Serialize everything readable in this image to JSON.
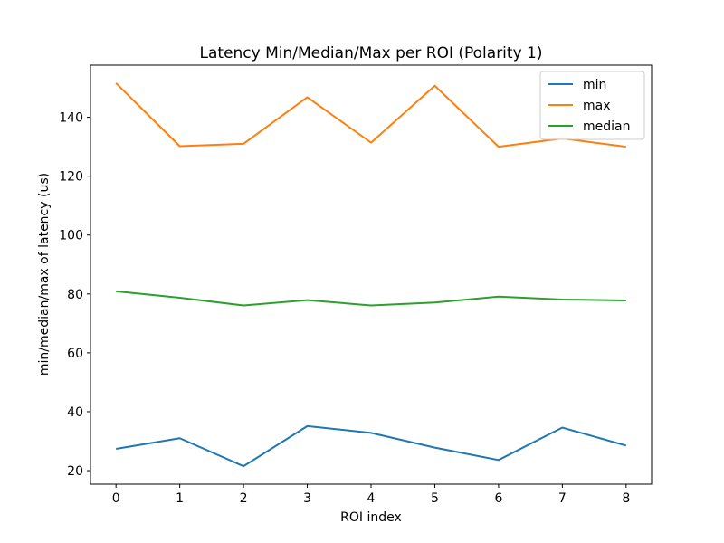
{
  "chart_data": {
    "type": "line",
    "title": "Latency Min/Median/Max per ROI (Polarity 1)",
    "xlabel": "ROI index",
    "ylabel": "min/median/max of latency (us)",
    "x": [
      0,
      1,
      2,
      3,
      4,
      5,
      6,
      7,
      8
    ],
    "xlim": [
      -0.4,
      8.4
    ],
    "ylim": [
      15.4,
      157.7
    ],
    "xticks": [
      0,
      1,
      2,
      3,
      4,
      5,
      6,
      7,
      8
    ],
    "yticks": [
      20,
      40,
      60,
      80,
      100,
      120,
      140
    ],
    "grid": false,
    "legend_position": "top-right",
    "series": [
      {
        "name": "min",
        "color": "#1f77b4",
        "values": [
          27.4,
          31.0,
          21.5,
          35.1,
          32.8,
          27.8,
          23.6,
          34.6,
          28.5
        ]
      },
      {
        "name": "max",
        "color": "#ff7f0e",
        "values": [
          151.6,
          130.2,
          131.0,
          146.8,
          131.4,
          150.7,
          130.0,
          132.8,
          130.0
        ]
      },
      {
        "name": "median",
        "color": "#2ca02c",
        "values": [
          80.9,
          78.7,
          76.1,
          77.9,
          76.1,
          77.1,
          79.1,
          78.1,
          77.8
        ]
      }
    ]
  }
}
